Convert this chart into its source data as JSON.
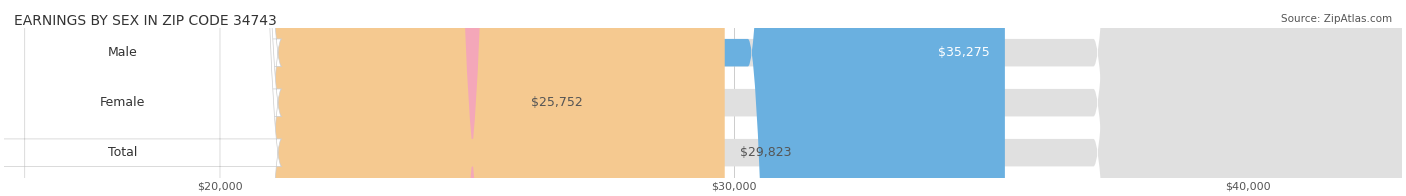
{
  "title": "EARNINGS BY SEX IN ZIP CODE 34743",
  "source": "Source: ZipAtlas.com",
  "categories": [
    "Male",
    "Female",
    "Total"
  ],
  "values": [
    35275,
    25752,
    29823
  ],
  "bar_colors": [
    "#6ab0e0",
    "#f4a7b9",
    "#f5c990"
  ],
  "bar_bg_color": "#e8e8e8",
  "label_bg_color": "#ffffff",
  "xlim_min": 20000,
  "xlim_max": 43000,
  "xticks": [
    20000,
    30000,
    40000
  ],
  "xtick_labels": [
    "$20,000",
    "$30,000",
    "$40,000"
  ],
  "bar_height": 0.55,
  "title_fontsize": 10,
  "label_fontsize": 9,
  "value_fontsize": 9,
  "axis_fontsize": 8,
  "background_color": "#ffffff"
}
